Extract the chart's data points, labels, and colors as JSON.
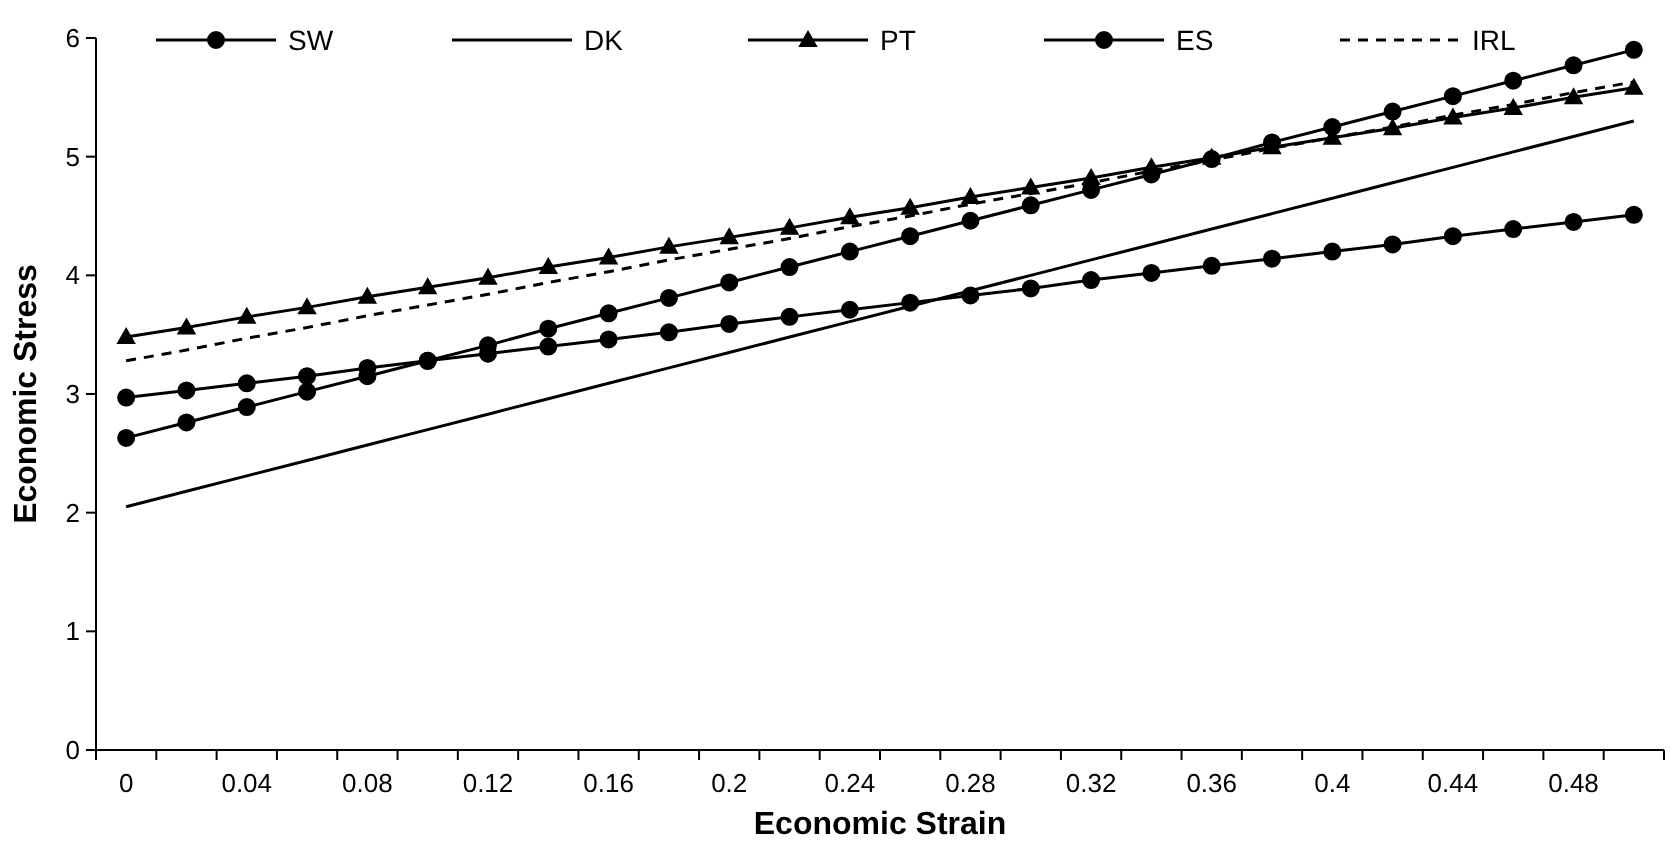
{
  "chart_data": {
    "type": "line",
    "xlabel": "Economic Strain",
    "ylabel": "Economic Stress",
    "categories": [
      "0",
      null,
      "0.04",
      null,
      "0.08",
      null,
      "0.12",
      null,
      "0.16",
      null,
      "0.2",
      null,
      "0.24",
      null,
      "0.28",
      null,
      "0.32",
      null,
      "0.36",
      null,
      "0.4",
      null,
      "0.44",
      null,
      "0.48",
      null
    ],
    "ylim": [
      0,
      6
    ],
    "yticks": [
      0,
      1,
      2,
      3,
      4,
      5,
      6
    ],
    "grid": false,
    "legend": "top",
    "series": [
      {
        "name": "SW",
        "color": "#000000",
        "marker": "circle",
        "line_style": "solid",
        "values": [
          2.63,
          2.76,
          2.89,
          3.02,
          3.15,
          3.28,
          3.41,
          3.55,
          3.68,
          3.81,
          3.94,
          4.07,
          4.2,
          4.33,
          4.46,
          4.59,
          4.72,
          4.85,
          4.98,
          5.12,
          5.25,
          5.38,
          5.51,
          5.64,
          5.77,
          5.9
        ]
      },
      {
        "name": "DK",
        "color": "#000000",
        "marker": "none",
        "line_style": "solid",
        "values": [
          2.05,
          2.18,
          2.31,
          2.44,
          2.57,
          2.7,
          2.83,
          2.96,
          3.09,
          3.22,
          3.35,
          3.48,
          3.61,
          3.74,
          3.87,
          4.0,
          4.13,
          4.26,
          4.39,
          4.52,
          4.65,
          4.78,
          4.91,
          5.04,
          5.17,
          5.3
        ]
      },
      {
        "name": "PT",
        "color": "#000000",
        "marker": "triangle",
        "line_style": "solid",
        "values": [
          3.48,
          3.56,
          3.65,
          3.73,
          3.82,
          3.9,
          3.98,
          4.07,
          4.15,
          4.24,
          4.32,
          4.4,
          4.49,
          4.57,
          4.66,
          4.74,
          4.82,
          4.91,
          4.99,
          5.08,
          5.16,
          5.24,
          5.33,
          5.41,
          5.5,
          5.58
        ]
      },
      {
        "name": "ES",
        "color": "#000000",
        "marker": "circle",
        "line_style": "solid",
        "values": [
          2.97,
          3.03,
          3.09,
          3.15,
          3.22,
          3.28,
          3.34,
          3.4,
          3.46,
          3.52,
          3.59,
          3.65,
          3.71,
          3.77,
          3.83,
          3.89,
          3.96,
          4.02,
          4.08,
          4.14,
          4.2,
          4.26,
          4.33,
          4.39,
          4.45,
          4.51
        ]
      },
      {
        "name": "IRL",
        "color": "#000000",
        "marker": "none",
        "line_style": "dashed",
        "values": [
          3.28,
          3.37,
          3.47,
          3.56,
          3.66,
          3.75,
          3.84,
          3.94,
          4.03,
          4.13,
          4.22,
          4.31,
          4.41,
          4.5,
          4.6,
          4.69,
          4.78,
          4.88,
          4.97,
          5.07,
          5.16,
          5.25,
          5.35,
          5.44,
          5.54,
          5.63
        ]
      }
    ]
  }
}
